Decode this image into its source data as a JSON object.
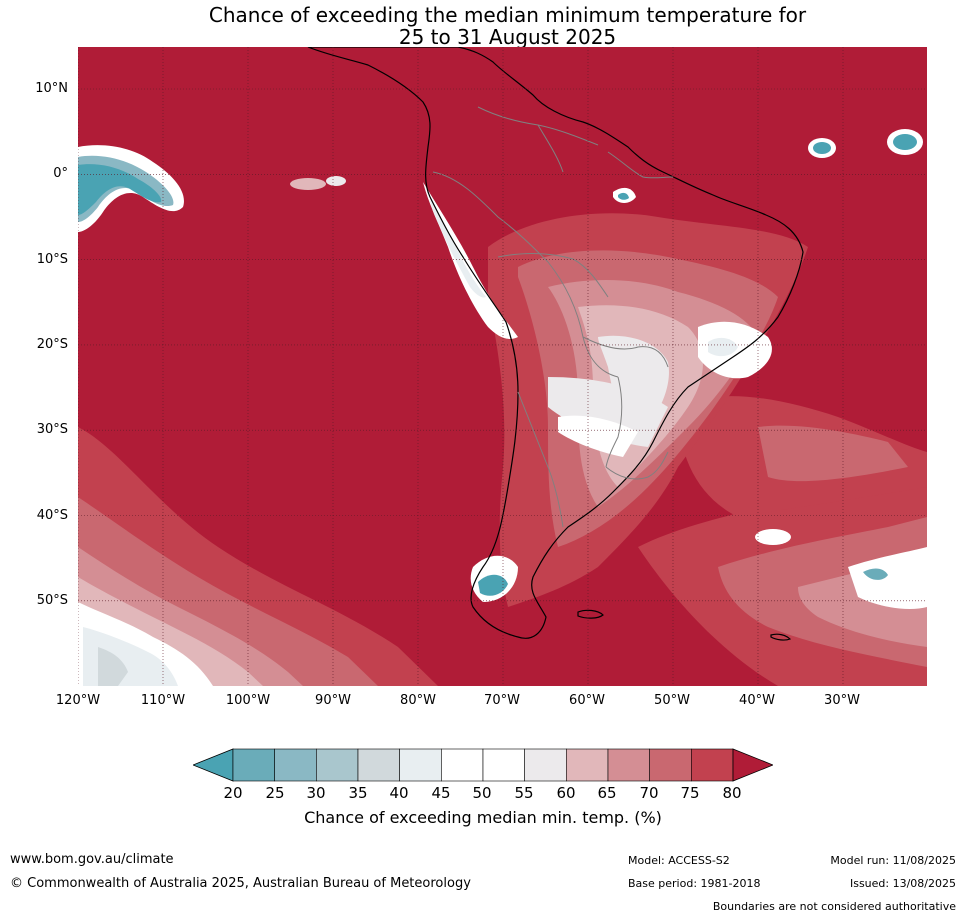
{
  "title": {
    "line1": "Chance of exceeding the median minimum temperature for",
    "line2": "25 to 31 August 2025"
  },
  "map": {
    "latitude_labels": [
      "10°N",
      "0°",
      "10°S",
      "20°S",
      "30°S",
      "40°S",
      "50°S"
    ],
    "longitude_labels": [
      "120°W",
      "110°W",
      "100°W",
      "90°W",
      "80°W",
      "70°W",
      "60°W",
      "50°W",
      "40°W",
      "30°W"
    ],
    "colors": {
      "background_above_80": "#b01c37",
      "band_75_80": "#c2414f",
      "band_70_75": "#c96870",
      "band_65_70": "#d48e94",
      "band_60_65": "#e1b7ba",
      "band_55_60": "#eceaec",
      "band_50_55": "#ffffff",
      "band_45_50": "#ffffff",
      "band_40_45": "#e8eef1",
      "band_35_40": "#d1d9dc",
      "band_30_35": "#a9c6cd",
      "band_25_30": "#8ab8c4",
      "band_20_25": "#6aacb9",
      "below_20": "#4aa3b3",
      "coastline": "#000000",
      "borders": "#808080",
      "gridlines": "#5a1a26"
    }
  },
  "colorbar": {
    "ticks": [
      "20",
      "25",
      "30",
      "35",
      "40",
      "45",
      "50",
      "55",
      "60",
      "65",
      "70",
      "75",
      "80"
    ],
    "title": "Chance of exceeding median min. temp. (%)",
    "colors": [
      "#4aa3b3",
      "#6aacb9",
      "#8ab8c4",
      "#a9c6cd",
      "#d1d9dc",
      "#e8eef1",
      "#ffffff",
      "#ffffff",
      "#eceaec",
      "#e1b7ba",
      "#d48e94",
      "#c96870",
      "#c2414f",
      "#b01c37"
    ]
  },
  "footer": {
    "website": "www.bom.gov.au/climate",
    "copyright": "© Commonwealth of Australia 2025, Australian Bureau of Meteorology",
    "model": "Model: ACCESS-S2",
    "model_run": "Model run: 11/08/2025",
    "base_period": "Base period: 1981-2018",
    "issued": "Issued: 13/08/2025",
    "boundaries_note": "Boundaries are not considered authoritative"
  }
}
